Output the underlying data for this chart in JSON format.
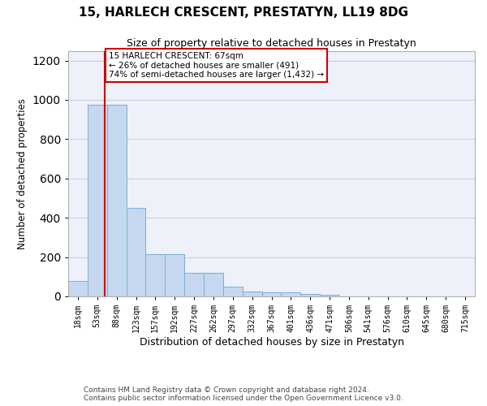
{
  "title": "15, HARLECH CRESCENT, PRESTATYN, LL19 8DG",
  "subtitle": "Size of property relative to detached houses in Prestatyn",
  "xlabel": "Distribution of detached houses by size in Prestatyn",
  "ylabel": "Number of detached properties",
  "categories": [
    "18sqm",
    "53sqm",
    "88sqm",
    "123sqm",
    "157sqm",
    "192sqm",
    "227sqm",
    "262sqm",
    "297sqm",
    "332sqm",
    "367sqm",
    "401sqm",
    "436sqm",
    "471sqm",
    "506sqm",
    "541sqm",
    "576sqm",
    "610sqm",
    "645sqm",
    "680sqm",
    "715sqm"
  ],
  "values": [
    80,
    975,
    975,
    450,
    215,
    215,
    120,
    120,
    48,
    25,
    22,
    22,
    14,
    10,
    0,
    0,
    0,
    0,
    0,
    0,
    0
  ],
  "bar_color": "#c5d8f0",
  "bar_edge_color": "#7aaed6",
  "property_line_x": 1.4,
  "property_line_color": "#cc0000",
  "annotation_text": "15 HARLECH CRESCENT: 67sqm\n← 26% of detached houses are smaller (491)\n74% of semi-detached houses are larger (1,432) →",
  "annotation_box_color": "#cc0000",
  "ylim": [
    0,
    1250
  ],
  "yticks": [
    0,
    200,
    400,
    600,
    800,
    1000,
    1200
  ],
  "grid_color": "#c8d0e0",
  "background_color": "#eef1fa",
  "footer_line1": "Contains HM Land Registry data © Crown copyright and database right 2024.",
  "footer_line2": "Contains public sector information licensed under the Open Government Licence v3.0."
}
